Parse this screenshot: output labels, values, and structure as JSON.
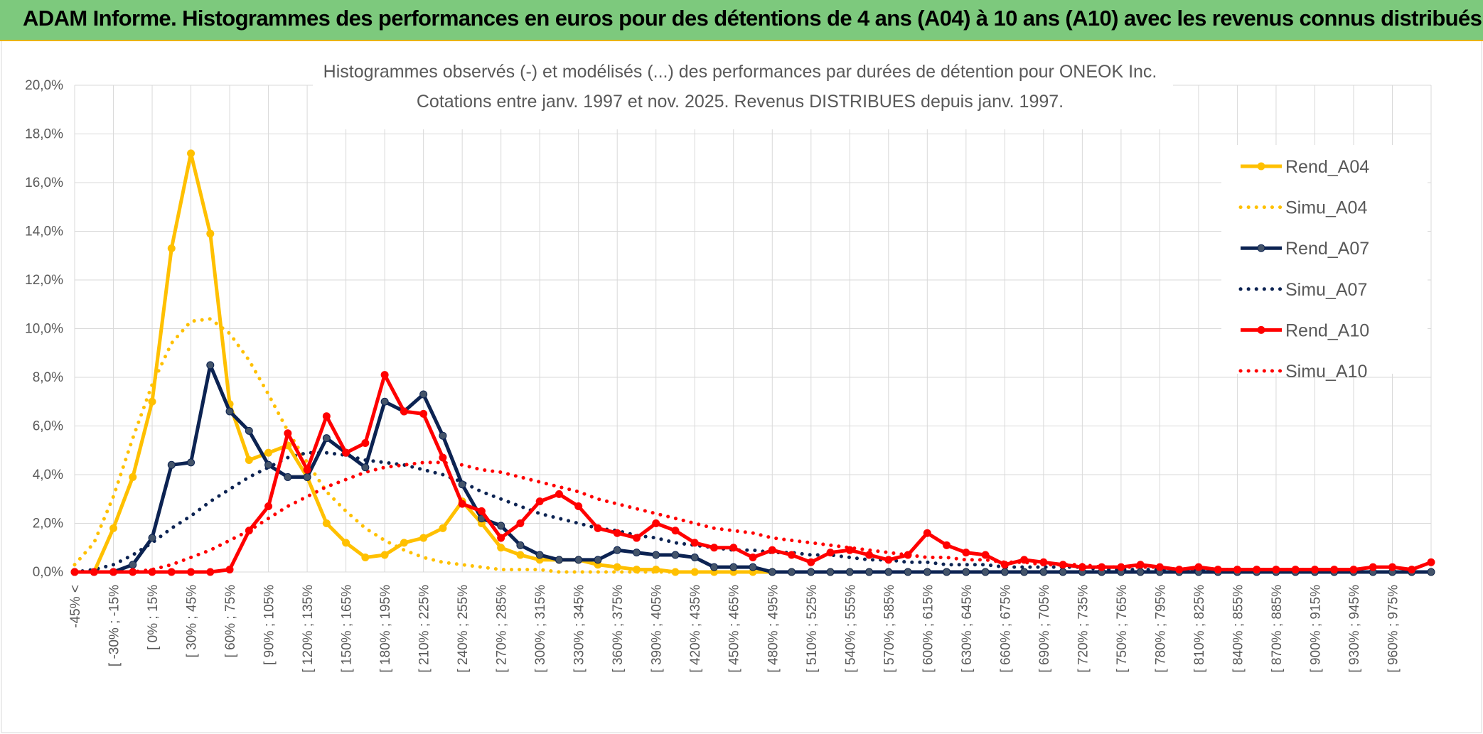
{
  "header": {
    "title": "ADAM Informe. Histogrammes des performances en euros pour des détentions de 4 ans (A04) à 10 ans (A10) avec les revenus connus distribués"
  },
  "chart_data": {
    "type": "line",
    "title_line1": "Histogrammes observés (-) et modélisés (...) des performances par durées de détention pour ONEOK Inc.",
    "title_line2": "Cotations entre janv. 1997 et nov. 2025. Revenus DISTRIBUES depuis janv. 1997.",
    "ylim": [
      0,
      20
    ],
    "y_ticks": [
      "0,0%",
      "2,0%",
      "4,0%",
      "6,0%",
      "8,0%",
      "10,0%",
      "12,0%",
      "14,0%",
      "16,0%",
      "18,0%",
      "20,0%"
    ],
    "x_tick_labels": [
      "-45% <",
      "[ -30% ; -15%",
      "[ 0% ; 15%",
      "[ 30% ; 45%",
      "[ 60% ; 75%",
      "[ 90% ; 105%",
      "[ 120% ; 135%",
      "[ 150% ; 165%",
      "[ 180% ; 195%",
      "[ 210% ; 225%",
      "[ 240% ; 255%",
      "[ 270% ; 285%",
      "[ 300% ; 315%",
      "[ 330% ; 345%",
      "[ 360% ; 375%",
      "[ 390% ; 405%",
      "[ 420% ; 435%",
      "[ 450% ; 465%",
      "[ 480% ; 495%",
      "[ 510% ; 525%",
      "[ 540% ; 555%",
      "[ 570% ; 585%",
      "[ 600% ; 615%",
      "[ 630% ; 645%",
      "[ 660% ; 675%",
      "[ 690% ; 705%",
      "[ 720% ; 735%",
      "[ 750% ; 765%",
      "[ 780% ; 795%",
      "[ 810% ; 825%",
      "[ 840% ; 855%",
      "[ 870% ; 885%",
      "[ 900% ; 915%",
      "[ 930% ; 945%",
      "[ 960% ; 975%"
    ],
    "legend_position": "right",
    "series": [
      {
        "name": "Rend_A04",
        "style": "solid",
        "color": "#ffc000",
        "values": [
          0,
          0,
          1.8,
          3.9,
          7,
          13.3,
          17.2,
          13.9,
          6.9,
          4.6,
          4.9,
          5.2,
          3.9,
          2,
          1.2,
          0.6,
          0.7,
          1.2,
          1.4,
          1.8,
          2.9,
          2,
          1,
          0.7,
          0.5,
          0.5,
          0.5,
          0.3,
          0.2,
          0.1,
          0.1,
          0,
          0,
          0,
          0,
          0,
          0,
          0,
          0,
          0,
          0,
          0,
          0,
          0,
          0,
          0,
          0,
          0,
          0,
          0,
          0,
          0,
          0,
          0,
          0,
          0,
          0,
          0,
          0,
          0,
          0,
          0,
          0,
          0,
          0,
          0,
          0,
          0,
          0,
          0,
          0
        ]
      },
      {
        "name": "Simu_A04",
        "style": "dotted",
        "color": "#ffc000",
        "values": [
          0.3,
          1.2,
          3.1,
          5.5,
          7.7,
          9.4,
          10.3,
          10.4,
          9.8,
          8.7,
          7.3,
          5.8,
          4.5,
          3.3,
          2.5,
          1.8,
          1.3,
          0.9,
          0.6,
          0.4,
          0.3,
          0.2,
          0.1,
          0.1,
          0.1,
          0,
          0,
          0,
          0,
          0,
          0,
          0,
          0,
          0,
          0,
          0,
          0,
          0,
          0,
          0,
          0,
          0,
          0,
          0,
          0,
          0,
          0,
          0,
          0,
          0,
          0,
          0,
          0,
          0,
          0,
          0,
          0,
          0,
          0,
          0,
          0,
          0,
          0,
          0,
          0,
          0,
          0,
          0,
          0,
          0,
          0
        ]
      },
      {
        "name": "Rend_A07",
        "style": "solid",
        "color": "#0c2352",
        "values": [
          0,
          0,
          0,
          0.3,
          1.4,
          4.4,
          4.5,
          8.5,
          6.6,
          5.8,
          4.4,
          3.9,
          3.9,
          5.5,
          4.9,
          4.3,
          7,
          6.6,
          7.3,
          5.6,
          3.6,
          2.2,
          1.9,
          1.1,
          0.7,
          0.5,
          0.5,
          0.5,
          0.9,
          0.8,
          0.7,
          0.7,
          0.6,
          0.2,
          0.2,
          0.2,
          0,
          0,
          0,
          0,
          0,
          0,
          0,
          0,
          0,
          0,
          0,
          0,
          0,
          0,
          0,
          0,
          0,
          0,
          0,
          0,
          0,
          0,
          0,
          0,
          0,
          0,
          0,
          0,
          0,
          0,
          0,
          0,
          0,
          0,
          0
        ]
      },
      {
        "name": "Simu_A07",
        "style": "dotted",
        "color": "#0c2352",
        "values": [
          0,
          0.1,
          0.3,
          0.7,
          1.2,
          1.8,
          2.3,
          2.9,
          3.4,
          3.9,
          4.3,
          4.7,
          4.9,
          4.9,
          4.8,
          4.6,
          4.5,
          4.4,
          4.2,
          4,
          3.7,
          3.3,
          3,
          2.7,
          2.4,
          2.2,
          2,
          1.8,
          1.7,
          1.5,
          1.4,
          1.2,
          1.1,
          1,
          0.9,
          0.9,
          0.8,
          0.8,
          0.7,
          0.7,
          0.6,
          0.5,
          0.5,
          0.4,
          0.4,
          0.3,
          0.3,
          0.3,
          0.2,
          0.2,
          0.2,
          0.2,
          0.2,
          0.1,
          0.1,
          0.1,
          0.1,
          0.1,
          0.1,
          0.1,
          0.1,
          0,
          0,
          0,
          0,
          0,
          0,
          0,
          0,
          0,
          0
        ]
      },
      {
        "name": "Rend_A10",
        "style": "solid",
        "color": "#ff0000",
        "values": [
          0,
          0,
          0,
          0,
          0,
          0,
          0,
          0,
          0.1,
          1.7,
          2.7,
          5.7,
          4.2,
          6.4,
          4.9,
          5.3,
          8.1,
          6.6,
          6.5,
          4.7,
          2.8,
          2.5,
          1.4,
          2,
          2.9,
          3.2,
          2.7,
          1.8,
          1.6,
          1.4,
          2,
          1.7,
          1.2,
          1,
          1,
          0.6,
          0.9,
          0.7,
          0.4,
          0.8,
          0.9,
          0.7,
          0.5,
          0.7,
          1.6,
          1.1,
          0.8,
          0.7,
          0.3,
          0.5,
          0.4,
          0.3,
          0.2,
          0.2,
          0.2,
          0.3,
          0.2,
          0.1,
          0.2,
          0.1,
          0.1,
          0.1,
          0.1,
          0.1,
          0.1,
          0.1,
          0.1,
          0.2,
          0.2,
          0.1,
          0.4
        ]
      },
      {
        "name": "Simu_A10",
        "style": "dotted",
        "color": "#ff0000",
        "values": [
          0,
          0,
          0,
          0,
          0.1,
          0.3,
          0.6,
          0.9,
          1.3,
          1.7,
          2.2,
          2.7,
          3.1,
          3.5,
          3.8,
          4.1,
          4.3,
          4.4,
          4.5,
          4.5,
          4.4,
          4.2,
          4.1,
          3.9,
          3.7,
          3.5,
          3.3,
          3,
          2.8,
          2.6,
          2.4,
          2.2,
          2,
          1.8,
          1.7,
          1.6,
          1.4,
          1.3,
          1.2,
          1.1,
          1,
          0.9,
          0.8,
          0.7,
          0.6,
          0.6,
          0.5,
          0.5,
          0.4,
          0.4,
          0.3,
          0.3,
          0.3,
          0.2,
          0.2,
          0.2,
          0.2,
          0.1,
          0.1,
          0.1,
          0.1,
          0.1,
          0.1,
          0.1,
          0.1,
          0.1,
          0,
          0,
          0,
          0,
          0
        ]
      }
    ]
  }
}
